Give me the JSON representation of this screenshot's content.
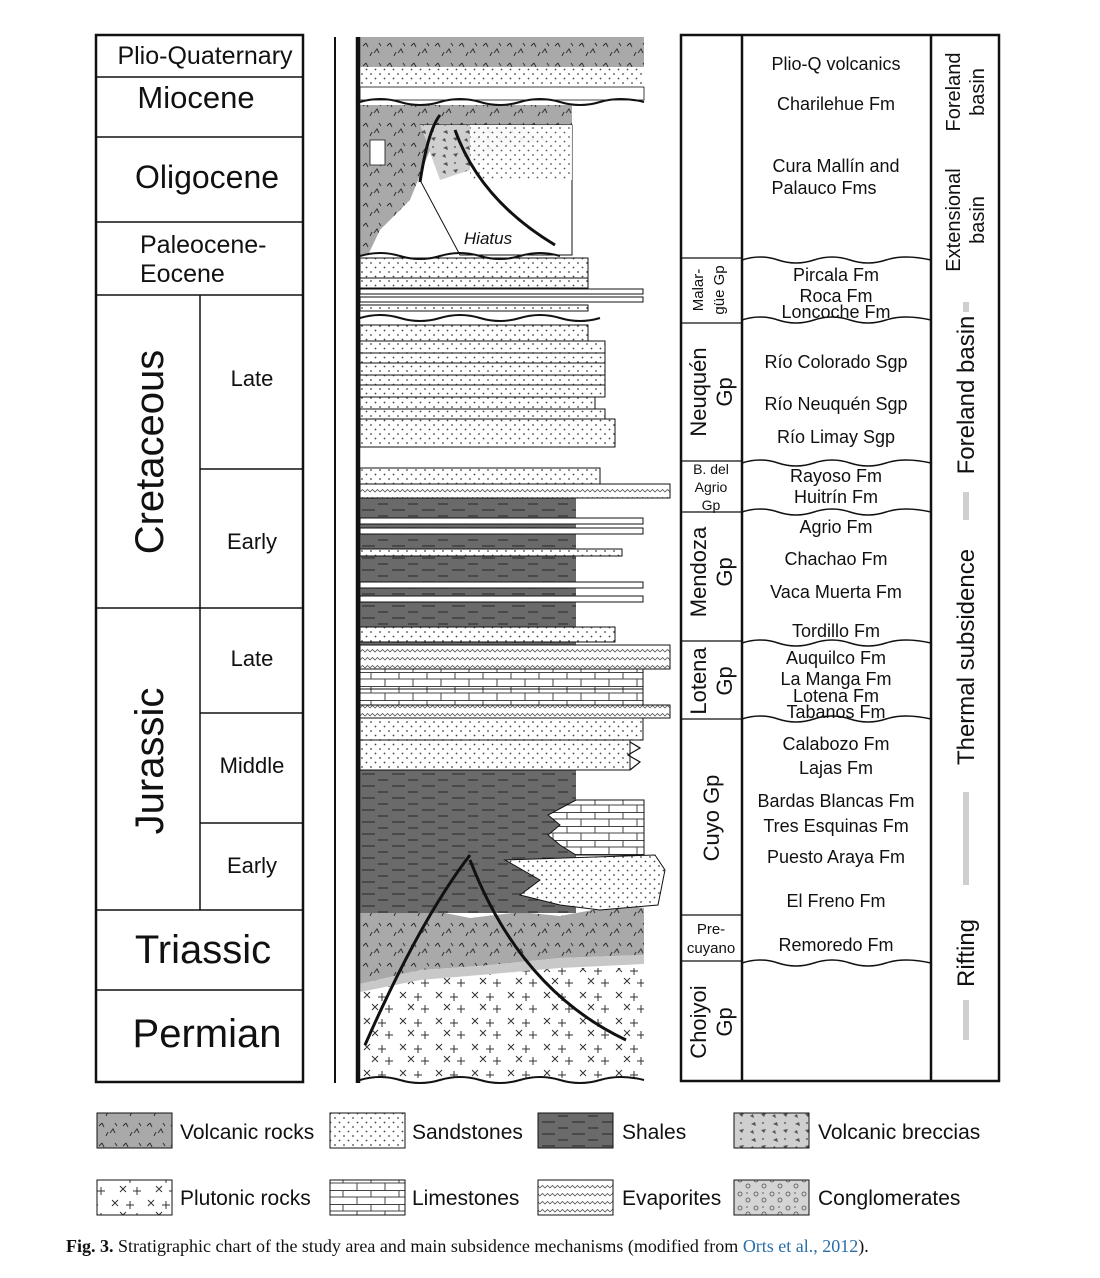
{
  "ages": {
    "plio_quaternary": "Plio-Quaternary",
    "miocene": "Miocene",
    "oligocene": "Oligocene",
    "paleocene_eocene_1": "Paleocene-",
    "paleocene_eocene_2": "Eocene",
    "cretaceous": "Cretaceous",
    "cretaceous_late": "Late",
    "cretaceous_early": "Early",
    "jurassic": "Jurassic",
    "jurassic_late": "Late",
    "jurassic_middle": "Middle",
    "jurassic_early": "Early",
    "triassic": "Triassic",
    "permian": "Permian"
  },
  "column": {
    "hiatus": "Hiatus"
  },
  "groups": {
    "malargue_1": "Malar-",
    "malargue_2": "güe Gp",
    "neuquen_1": "Neuquén",
    "neuquen_2": "Gp",
    "bagrio_1": "B. del",
    "bagrio_2": "Agrio",
    "bagrio_3": "Gp",
    "mendoza_1": "Mendoza",
    "mendoza_2": "Gp",
    "lotena_1": "Lotena",
    "lotena_2": "Gp",
    "cuyo": "Cuyo Gp",
    "precuyano_1": "Pre-",
    "precuyano_2": "cuyano",
    "choiyoi_1": "Choiyoi",
    "choiyoi_2": "Gp"
  },
  "formations": {
    "plio_q": "Plio-Q volcanics",
    "charilehue": "Charilehue Fm",
    "cura_mallin_1": "Cura Mallín and",
    "cura_mallin_2": "Palauco Fms",
    "pircala": "Pircala Fm",
    "roca": "Roca Fm",
    "loncoche": "Loncoche Fm",
    "rio_colorado": "Río Colorado Sgp",
    "rio_neuquen": "Río Neuquén Sgp",
    "rio_limay": "Río Limay Sgp",
    "rayoso": "Rayoso Fm",
    "huitrin": "Huitrín Fm",
    "agrio": "Agrio Fm",
    "chachao": "Chachao Fm",
    "vaca_muerta": "Vaca Muerta Fm",
    "tordillo": "Tordillo Fm",
    "auquilco": "Auquilco Fm",
    "la_manga": "La Manga Fm",
    "lotena": "Lotena Fm",
    "tabanos": "Tabanos Fm",
    "calabozo": "Calabozo Fm",
    "lajas": "Lajas Fm",
    "bardas_blancas": "Bardas Blancas Fm",
    "tres_esquinas": "Tres Esquinas Fm",
    "puesto_araya": "Puesto Araya Fm",
    "el_freno": "El Freno Fm",
    "remoredo": "Remoredo Fm"
  },
  "mechanisms": {
    "foreland_top_1": "Foreland",
    "foreland_top_2": "basin",
    "extensional_1": "Extensional",
    "extensional_2": "basin",
    "foreland_basin": "Foreland basin",
    "thermal": "Thermal subsidence",
    "rifting": "Rifting"
  },
  "legend": {
    "volcanic": "Volcanic rocks",
    "sandstones": "Sandstones",
    "shales": "Shales",
    "volcanic_breccias": "Volcanic breccias",
    "plutonic": "Plutonic rocks",
    "limestones": "Limestones",
    "evaporites": "Evaporites",
    "conglomerates": "Conglomerates"
  },
  "caption": {
    "label": "Fig. 3.",
    "text": " Stratigraphic chart of the study area and main subsidence mechanisms (modified from ",
    "ref": "Orts et al., 2012",
    "end": ")."
  },
  "colors": {
    "shale": "#6a6a6a",
    "volcanic": "#a9a9a9",
    "breccia": "#cfcfcf",
    "band": "#c8c8c8"
  }
}
